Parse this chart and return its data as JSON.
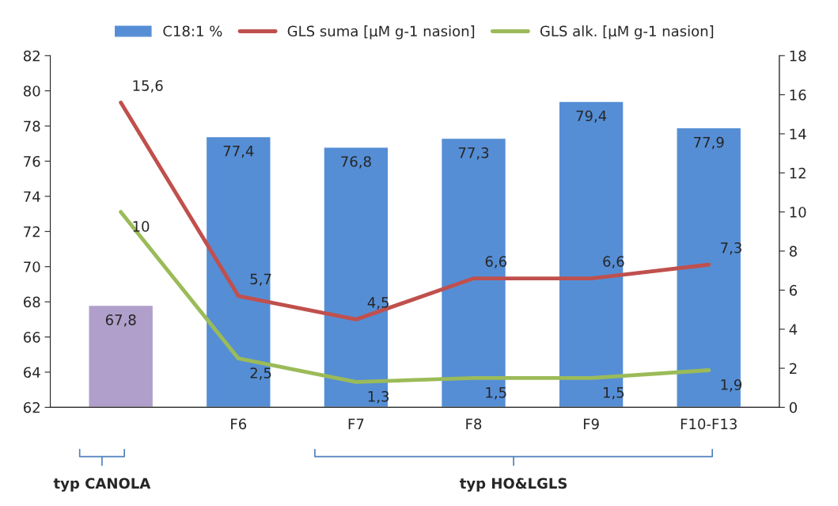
{
  "chart_data": {
    "type": "bar",
    "categories": [
      null,
      "F6",
      "F7",
      "F8",
      "F9",
      "F10-F13"
    ],
    "series": [
      {
        "name": "C18:1 %",
        "color": "#558ed5",
        "colors": [
          "#b09fca",
          "#558ed5",
          "#558ed5",
          "#558ed5",
          "#558ed5",
          "#558ed5"
        ],
        "values": [
          67.8,
          77.4,
          76.8,
          77.3,
          79.4,
          77.9
        ],
        "value_labels": [
          "67,8",
          "77,4",
          "76,8",
          "77,3",
          "79,4",
          "77,9"
        ]
      },
      {
        "name": "GLS suma [µM g-1 nasion]",
        "type": "line",
        "axis": "y2",
        "color": "#c0504d",
        "values": [
          15.6,
          5.7,
          4.5,
          6.6,
          6.6,
          7.3
        ],
        "value_labels": [
          "15,6",
          "5,7",
          "4,5",
          "6,6",
          "6,6",
          "7,3"
        ]
      },
      {
        "name": "GLS alk. [µM g-1 nasion]",
        "type": "line",
        "axis": "y2",
        "color": "#9bbb59",
        "values": [
          10,
          2.5,
          1.3,
          1.5,
          1.5,
          1.9
        ],
        "value_labels": [
          "10",
          "2,5",
          "1,3",
          "1,5",
          "1,5",
          "1,9"
        ]
      }
    ],
    "ylim": [
      62,
      82
    ],
    "yticks": [
      62,
      64,
      66,
      68,
      70,
      72,
      74,
      76,
      78,
      80,
      82
    ],
    "y2lim": [
      0,
      18
    ],
    "y2ticks": [
      0,
      2,
      4,
      6,
      8,
      10,
      12,
      14,
      16,
      18
    ],
    "legend": "top",
    "grid": false,
    "marker": "none",
    "line_style": "solid",
    "annotations": [
      "typ CANOLA",
      "typ HO&LGLS"
    ]
  }
}
